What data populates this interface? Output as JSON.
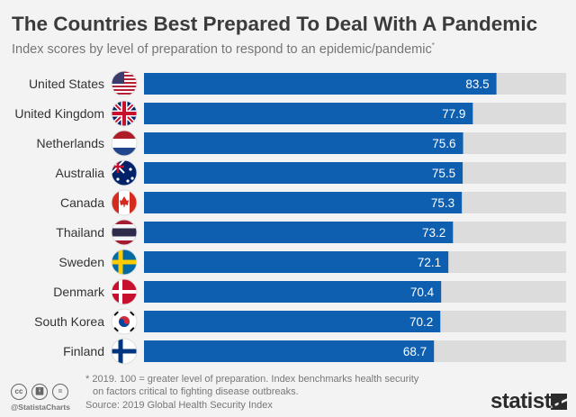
{
  "chart_data": {
    "type": "bar",
    "orientation": "horizontal",
    "title": "The Countries Best Prepared To Deal With A Pandemic",
    "subtitle": "Index scores by level of preparation to respond to an epidemic/pandemic",
    "subtitle_mark": "*",
    "categories": [
      "United States",
      "United Kingdom",
      "Netherlands",
      "Australia",
      "Canada",
      "Thailand",
      "Sweden",
      "Denmark",
      "South Korea",
      "Finland"
    ],
    "values": [
      83.5,
      77.9,
      75.6,
      75.5,
      75.3,
      73.2,
      72.1,
      70.4,
      70.2,
      68.7
    ],
    "labels": [
      "83.5",
      "77.9",
      "75.6",
      "75.5",
      "75.3",
      "73.2",
      "72.1",
      "70.4",
      "70.2",
      "68.7"
    ],
    "xlim": [
      0,
      100
    ],
    "bar_color": "#0f5fb0",
    "track_color": "#dcdcdc",
    "flag_icons": [
      "us-flag-icon",
      "uk-flag-icon",
      "netherlands-flag-icon",
      "australia-flag-icon",
      "canada-flag-icon",
      "thailand-flag-icon",
      "sweden-flag-icon",
      "denmark-flag-icon",
      "south-korea-flag-icon",
      "finland-flag-icon"
    ]
  },
  "footer": {
    "note_line1": "* 2019. 100 = greater level of preparation. Index benchmarks health security",
    "note_line2": "on factors critical to fighting disease outbreaks.",
    "source": "Source: 2019 Global Health Security Index",
    "handle": "@StatistaCharts",
    "logo": "statista",
    "cc": "cc",
    "eq": "="
  }
}
